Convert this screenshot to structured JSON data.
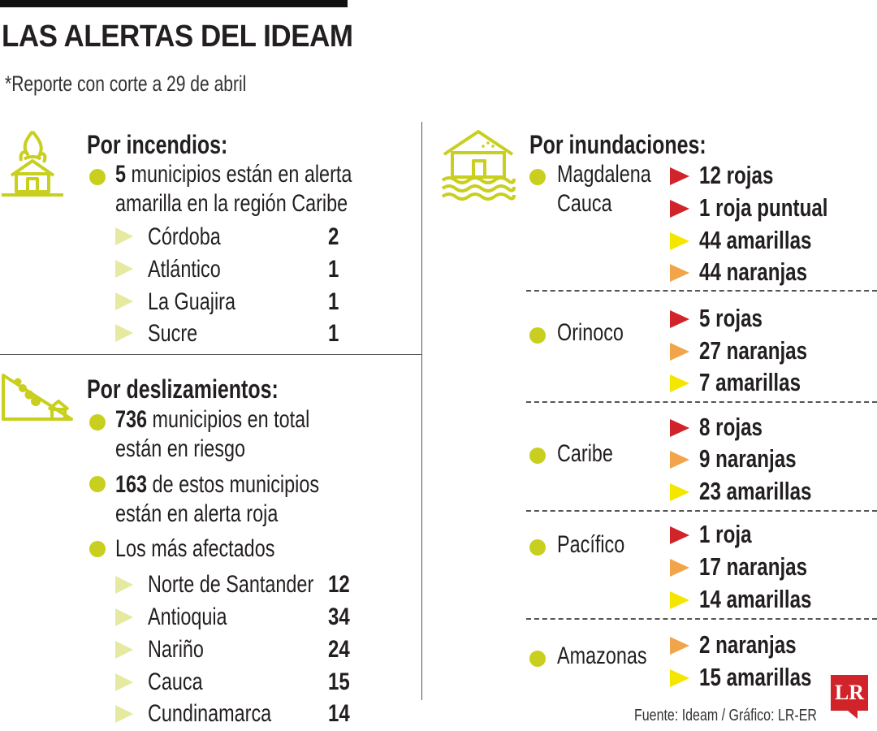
{
  "header": {
    "title": "LAS ALERTAS DEL IDEAM",
    "subtitle": "*Reporte con corte a 29 de abril"
  },
  "incendios": {
    "heading": "Por incendios:",
    "summary_count": "5",
    "summary_line1": "municipios están en alerta",
    "summary_line2": "amarilla en la región Caribe",
    "items": [
      {
        "name": "Córdoba",
        "value": "2"
      },
      {
        "name": "Atlántico",
        "value": "1"
      },
      {
        "name": "La Guajira",
        "value": "1"
      },
      {
        "name": "Sucre",
        "value": "1"
      }
    ]
  },
  "deslizamientos": {
    "heading": "Por deslizamientos:",
    "p1_count": "736",
    "p1_line1": "municipios en total",
    "p1_line2": "están en riesgo",
    "p2_count": "163",
    "p2_line1": "de estos municipios",
    "p2_line2": "están en alerta roja",
    "p3": "Los más afectados",
    "items": [
      {
        "name": "Norte de Santander",
        "value": "12"
      },
      {
        "name": "Antioquia",
        "value": "34"
      },
      {
        "name": "Nariño",
        "value": "24"
      },
      {
        "name": "Cauca",
        "value": "15"
      },
      {
        "name": "Cundinamarca",
        "value": "14"
      }
    ]
  },
  "inundaciones": {
    "heading": "Por inundaciones:",
    "regions": [
      {
        "name_line1": "Magdalena",
        "name_line2": "Cauca",
        "alerts": [
          "12 rojas",
          "1 roja puntual",
          "44 amarillas",
          "44 naranjas"
        ]
      },
      {
        "name_line1": "Orinoco",
        "alerts": [
          "5 rojas",
          "27 naranjas",
          "7 amarillas"
        ]
      },
      {
        "name_line1": "Caribe",
        "alerts": [
          "8 rojas",
          "9 naranjas",
          "23 amarillas"
        ]
      },
      {
        "name_line1": "Pacífico",
        "alerts": [
          "1 roja",
          "17 naranjas",
          "14 amarillas"
        ]
      },
      {
        "name_line1": "Amazonas",
        "alerts": [
          "2 naranjas",
          "15 amarillas"
        ]
      }
    ]
  },
  "colors": {
    "accent_green": "#c8cf1e",
    "red": "#d1232a",
    "yellow": "#f5e600",
    "orange": "#f2a44a"
  },
  "footer": {
    "source": "Fuente: Ideam / Gráfico: LR-ER",
    "logo": "LR"
  }
}
